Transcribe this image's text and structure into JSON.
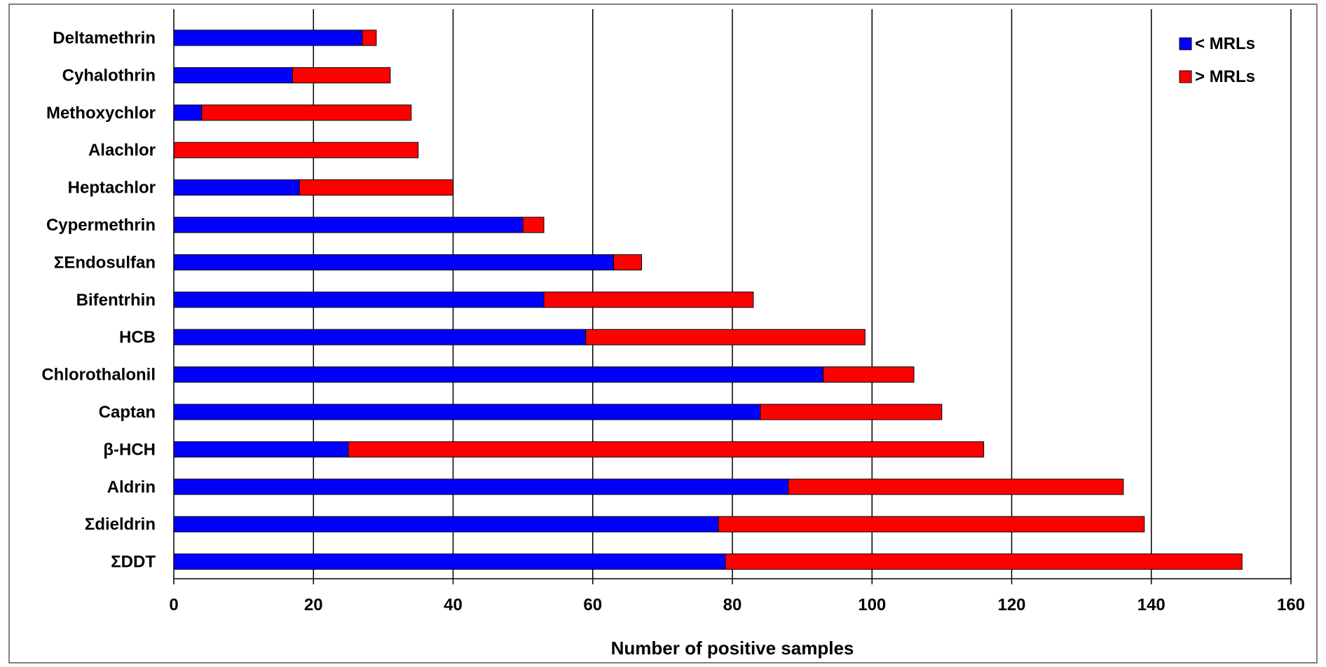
{
  "chart_data": {
    "type": "bar",
    "orientation": "horizontal",
    "stacked": true,
    "categories": [
      "Deltamethrin",
      "Cyhalothrin",
      "Methoxychlor",
      "Alachlor",
      "Heptachlor",
      "Cypermethrin",
      "ΣEndosulfan",
      "Bifentrhin",
      "HCB",
      "Chlorothalonil",
      "Captan",
      "β-HCH",
      "Aldrin",
      "Σdieldrin",
      "ΣDDT"
    ],
    "series": [
      {
        "name": "< MRLs",
        "color": "#0000ff",
        "values": [
          27,
          17,
          4,
          0,
          18,
          50,
          63,
          53,
          59,
          93,
          84,
          25,
          88,
          78,
          79
        ]
      },
      {
        "name": "> MRLs",
        "color": "#ff0000",
        "values": [
          2,
          14,
          30,
          35,
          22,
          3,
          4,
          30,
          40,
          13,
          26,
          91,
          48,
          61,
          74
        ]
      }
    ],
    "xlabel": "Number of positive samples",
    "ylabel": "",
    "xlim": [
      0,
      160
    ],
    "x_ticks": [
      "0",
      "20",
      "40",
      "60",
      "80",
      "100",
      "120",
      "140",
      "160"
    ],
    "grid": "vertical",
    "legend_position": "top-right"
  }
}
